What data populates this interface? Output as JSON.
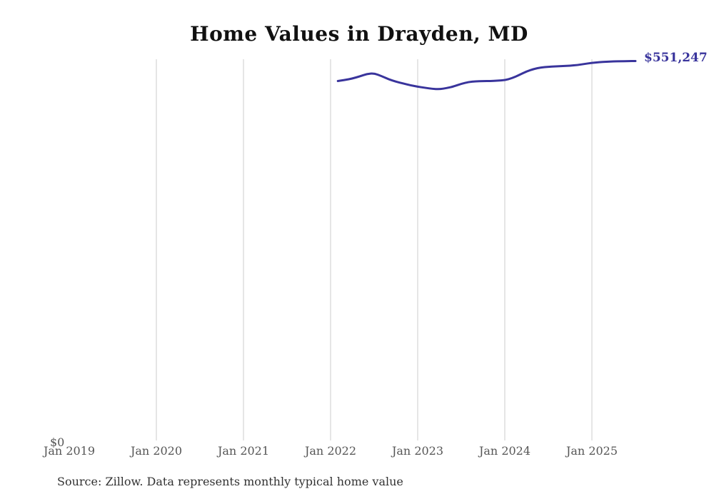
{
  "title": {
    "text": "Home Values in Drayden, MD"
  },
  "annotations": {
    "end_value_label": "$551,247",
    "y_zero_label": "$0"
  },
  "source": {
    "text": "Source: Zillow. Data represents monthly typical home value"
  },
  "colors": {
    "line": "#39349c",
    "end_label": "#39349c",
    "grid": "#d4d4d4",
    "tick_text": "#565656",
    "title_text": "#111111",
    "source_text": "#323232",
    "background": "#ffffff"
  },
  "chart_data": {
    "type": "line",
    "title": "Home Values in Drayden, MD",
    "series_name": "Monthly typical home value (USD)",
    "x": [
      "2022-02",
      "2022-03",
      "2022-04",
      "2022-05",
      "2022-06",
      "2022-07",
      "2022-08",
      "2022-09",
      "2022-10",
      "2022-11",
      "2022-12",
      "2023-01",
      "2023-02",
      "2023-03",
      "2023-04",
      "2023-05",
      "2023-06",
      "2023-07",
      "2023-08",
      "2023-09",
      "2023-10",
      "2023-11",
      "2023-12",
      "2024-01",
      "2024-02",
      "2024-03",
      "2024-04",
      "2024-05",
      "2024-06",
      "2024-07",
      "2024-08",
      "2024-09",
      "2024-10",
      "2024-11",
      "2024-12",
      "2025-01",
      "2025-02",
      "2025-03",
      "2025-04",
      "2025-05",
      "2025-06",
      "2025-07"
    ],
    "values": [
      522300,
      523900,
      525900,
      529000,
      532600,
      533400,
      529500,
      524900,
      521300,
      518700,
      516100,
      514100,
      512500,
      511000,
      510400,
      512000,
      514600,
      518200,
      520800,
      521800,
      522300,
      522300,
      522900,
      523400,
      526500,
      531100,
      536200,
      539800,
      541900,
      542900,
      543500,
      544000,
      544500,
      545500,
      547100,
      548600,
      549600,
      550300,
      550700,
      551000,
      551150,
      551247
    ],
    "end_label": "$551,247",
    "ylim": [
      0,
      560000
    ],
    "y_zero_tick": "$0",
    "x_ticks": [
      {
        "label": "Jan 2019",
        "date": "2019-01",
        "gridline": false
      },
      {
        "label": "Jan 2020",
        "date": "2020-01",
        "gridline": true
      },
      {
        "label": "Jan 2021",
        "date": "2021-01",
        "gridline": true
      },
      {
        "label": "Jan 2022",
        "date": "2022-01",
        "gridline": true
      },
      {
        "label": "Jan 2023",
        "date": "2023-01",
        "gridline": true
      },
      {
        "label": "Jan 2024",
        "date": "2024-01",
        "gridline": true
      },
      {
        "label": "Jan 2025",
        "date": "2025-01",
        "gridline": true
      }
    ],
    "grid": "vertical-only",
    "legend": "none",
    "source": "Source: Zillow. Data represents monthly typical home value"
  }
}
